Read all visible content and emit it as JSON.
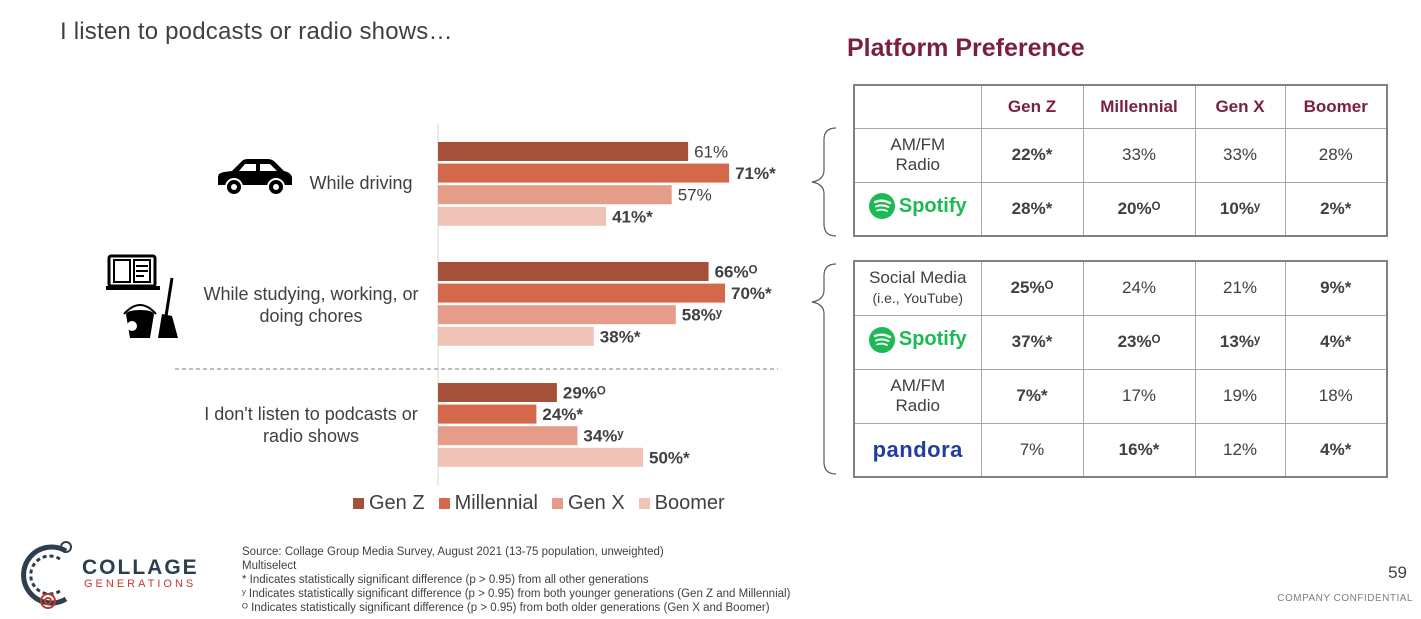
{
  "slide_title": "I listen to podcasts or radio shows…",
  "panel_title": "Platform Preference",
  "chart_data": {
    "type": "bar",
    "orientation": "horizontal",
    "title": "I listen to podcasts or radio shows…",
    "categories": [
      "While driving",
      "While studying, working, or doing chores",
      "I don't listen to podcasts or radio shows"
    ],
    "category_lines": [
      [
        "While driving"
      ],
      [
        "While studying, working, or",
        "doing chores"
      ],
      [
        "I don't listen to podcasts or",
        "radio shows"
      ]
    ],
    "series": [
      {
        "name": "Gen Z",
        "color": "#a5513a",
        "values": [
          61,
          66,
          29
        ],
        "labels": [
          "61%",
          "66%ᴼ",
          "29%ᴼ"
        ],
        "bold": [
          false,
          true,
          true
        ]
      },
      {
        "name": "Millennial",
        "color": "#d4684b",
        "values": [
          71,
          70,
          24
        ],
        "labels": [
          "71%*",
          "70%*",
          "24%*"
        ],
        "bold": [
          true,
          true,
          true
        ]
      },
      {
        "name": "Gen X",
        "color": "#e59c88",
        "values": [
          57,
          58,
          34
        ],
        "labels": [
          "57%",
          "58%ʸ",
          "34%ʸ"
        ],
        "bold": [
          false,
          true,
          true
        ]
      },
      {
        "name": "Boomer",
        "color": "#efc4b7",
        "values": [
          41,
          38,
          50
        ],
        "labels": [
          "41%*",
          "38%*",
          "50%*"
        ],
        "bold": [
          true,
          true,
          true
        ]
      }
    ],
    "xlim": [
      0,
      100
    ],
    "legend_position": "bottom",
    "grid": false
  },
  "legend": [
    {
      "name": "Gen Z",
      "color": "#a5513a"
    },
    {
      "name": "Millennial",
      "color": "#d4684b"
    },
    {
      "name": "Gen X",
      "color": "#e59c88"
    },
    {
      "name": "Boomer",
      "color": "#efc4b7"
    }
  ],
  "table": {
    "headers": [
      "Gen Z",
      "Millennial",
      "Gen X",
      "Boomer"
    ],
    "group1": [
      {
        "label_lines": [
          "AM/FM",
          "Radio"
        ],
        "cells": [
          {
            "v": "22%*",
            "b": true
          },
          {
            "v": "33%",
            "b": false
          },
          {
            "v": "33%",
            "b": false
          },
          {
            "v": "28%",
            "b": false
          }
        ]
      },
      {
        "brand": "Spotify",
        "cells": [
          {
            "v": "28%*",
            "b": true
          },
          {
            "v": "20%ᴼ",
            "b": true
          },
          {
            "v": "10%ʸ",
            "b": true
          },
          {
            "v": "2%*",
            "b": true
          }
        ]
      }
    ],
    "group2": [
      {
        "label_lines": [
          "Social Media"
        ],
        "sub": "(i.e., YouTube)",
        "cells": [
          {
            "v": "25%ᴼ",
            "b": true
          },
          {
            "v": "24%",
            "b": false
          },
          {
            "v": "21%",
            "b": false
          },
          {
            "v": "9%*",
            "b": true
          }
        ]
      },
      {
        "brand": "Spotify",
        "cells": [
          {
            "v": "37%*",
            "b": true
          },
          {
            "v": "23%ᴼ",
            "b": true
          },
          {
            "v": "13%ʸ",
            "b": true
          },
          {
            "v": "4%*",
            "b": true
          }
        ]
      },
      {
        "label_lines": [
          "AM/FM",
          "Radio"
        ],
        "cells": [
          {
            "v": "7%*",
            "b": true
          },
          {
            "v": "17%",
            "b": false
          },
          {
            "v": "19%",
            "b": false
          },
          {
            "v": "18%",
            "b": false
          }
        ]
      },
      {
        "brand": "pandora",
        "cells": [
          {
            "v": "7%",
            "b": false
          },
          {
            "v": "16%*",
            "b": true
          },
          {
            "v": "12%",
            "b": false
          },
          {
            "v": "4%*",
            "b": true
          }
        ]
      }
    ]
  },
  "footnotes": [
    "Source: Collage Group Media Survey, August 2021 (13-75 population, unweighted)",
    "Multiselect",
    "* Indicates statistically significant difference (p > 0.95) from all other generations",
    "ʸ Indicates statistically significant difference (p > 0.95) from both younger generations (Gen Z and Millennial)",
    "ᴼ Indicates statistically significant difference (p > 0.95) from both older generations (Gen X and Boomer)"
  ],
  "logo": {
    "word1": "COLLAGE",
    "word2": "GENERATIONS"
  },
  "page_number": "59",
  "confidential": "COMPANY CONFIDENTIAL"
}
